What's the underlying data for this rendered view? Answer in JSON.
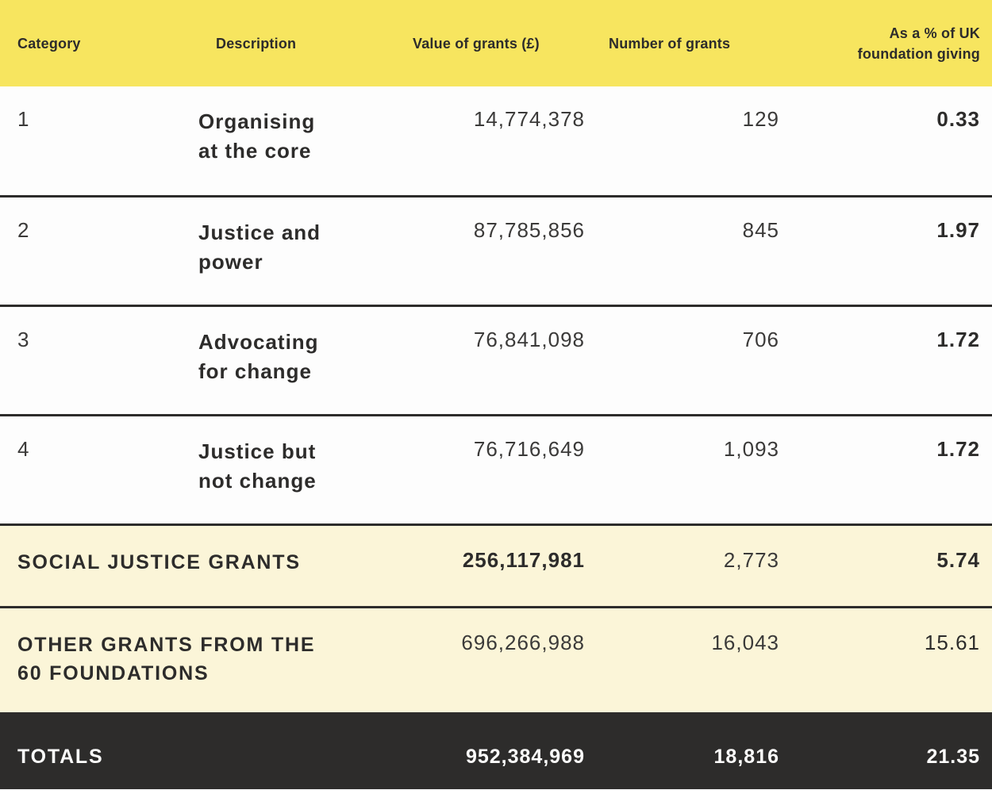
{
  "colors": {
    "header_yellow": "#f7e55f",
    "summary_cream": "#fbf5d8",
    "totals_dark": "#2d2c2b",
    "row_white": "#fdfdfd",
    "text_dark": "#2d2c2b",
    "text_light": "#fdfdfc"
  },
  "header": {
    "columns": [
      {
        "id": "category",
        "label": "Category"
      },
      {
        "id": "description",
        "label": "Description"
      },
      {
        "id": "value",
        "label": "Value of grants (£)"
      },
      {
        "id": "number",
        "label": "Number of grants"
      },
      {
        "id": "pct",
        "label": "As a % of UK\nfoundation giving"
      }
    ]
  },
  "rows": [
    {
      "category": "1",
      "description": "Organising\nat the core",
      "value": "14,774,378",
      "number": "129",
      "pct": "0.33"
    },
    {
      "category": "2",
      "description": "Justice and\npower",
      "value": "87,785,856",
      "number": "845",
      "pct": "1.97"
    },
    {
      "category": "3",
      "description": "Advocating\nfor change",
      "value": "76,841,098",
      "number": "706",
      "pct": "1.72"
    },
    {
      "category": "4",
      "description": "Justice but\nnot change",
      "value": "76,716,649",
      "number": "1,093",
      "pct": "1.72"
    }
  ],
  "summary": [
    {
      "label": "SOCIAL JUSTICE GRANTS",
      "value": "256,117,981",
      "number": "2,773",
      "pct": "5.74"
    },
    {
      "label": "OTHER GRANTS FROM THE\n60 FOUNDATIONS",
      "value": "696,266,988",
      "number": "16,043",
      "pct": "15.61"
    }
  ],
  "totals": {
    "label": "TOTALS",
    "value": "952,384,969",
    "number": "18,816",
    "pct": "21.35"
  }
}
